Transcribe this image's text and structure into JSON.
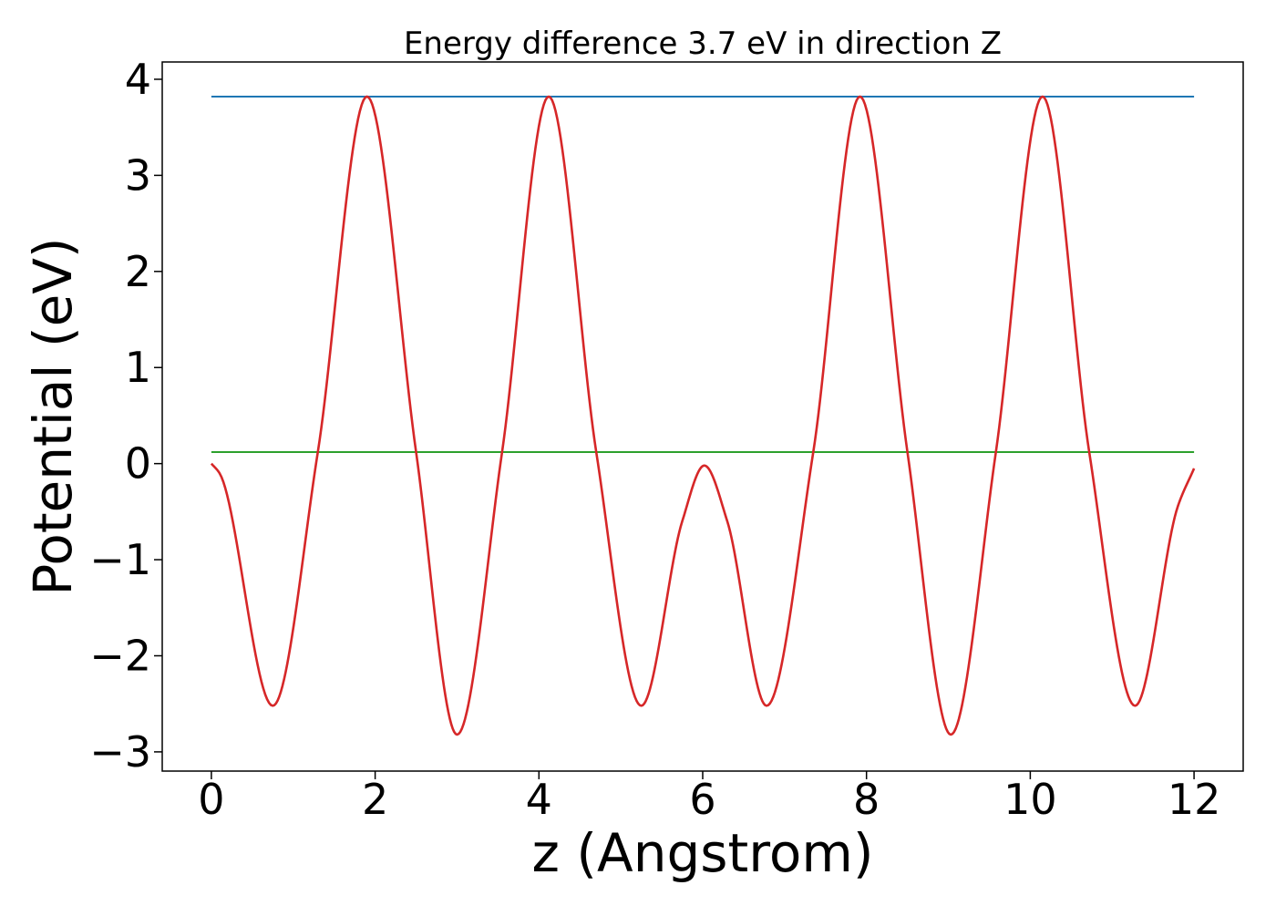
{
  "chart_data": {
    "type": "line",
    "title": "Energy difference 3.7 eV in direction Z",
    "xlabel": "z (Angstrom)",
    "ylabel": "Potential (eV)",
    "xlim": [
      -0.6,
      12.6
    ],
    "ylim": [
      -3.2,
      4.18
    ],
    "grid": false,
    "x_ticks": [
      0,
      2,
      4,
      6,
      8,
      10,
      12
    ],
    "y_ticks": [
      -3,
      -2,
      -1,
      0,
      1,
      2,
      3,
      4
    ],
    "x_tick_labels": [
      "0",
      "2",
      "4",
      "6",
      "8",
      "10",
      "12"
    ],
    "y_tick_labels": [
      "−3",
      "−2",
      "−1",
      "0",
      "1",
      "2",
      "3",
      "4"
    ],
    "series": [
      {
        "color": "#d62728",
        "style": "curve",
        "x": [
          0,
          0.1,
          0.75,
          1.3,
          1.9,
          2.5,
          3.0,
          3.55,
          4.12,
          4.7,
          5.25,
          5.75,
          6.02,
          6.3,
          6.78,
          7.35,
          7.92,
          8.5,
          9.03,
          9.58,
          10.15,
          10.72,
          11.28,
          11.8,
          12.0
        ],
        "y": [
          0.0,
          -0.1,
          -2.52,
          0.12,
          3.82,
          0.12,
          -2.82,
          0.12,
          3.82,
          0.12,
          -2.52,
          -0.6,
          -0.02,
          -0.6,
          -2.52,
          0.12,
          3.82,
          0.12,
          -2.82,
          0.12,
          3.82,
          0.12,
          -2.52,
          -0.45,
          -0.05
        ]
      },
      {
        "color": "#1f77b4",
        "style": "hline",
        "x": [
          0,
          12
        ],
        "y": [
          3.82,
          3.82
        ]
      },
      {
        "color": "#2ca02c",
        "style": "hline",
        "x": [
          0,
          12
        ],
        "y": [
          0.12,
          0.12
        ]
      }
    ]
  }
}
